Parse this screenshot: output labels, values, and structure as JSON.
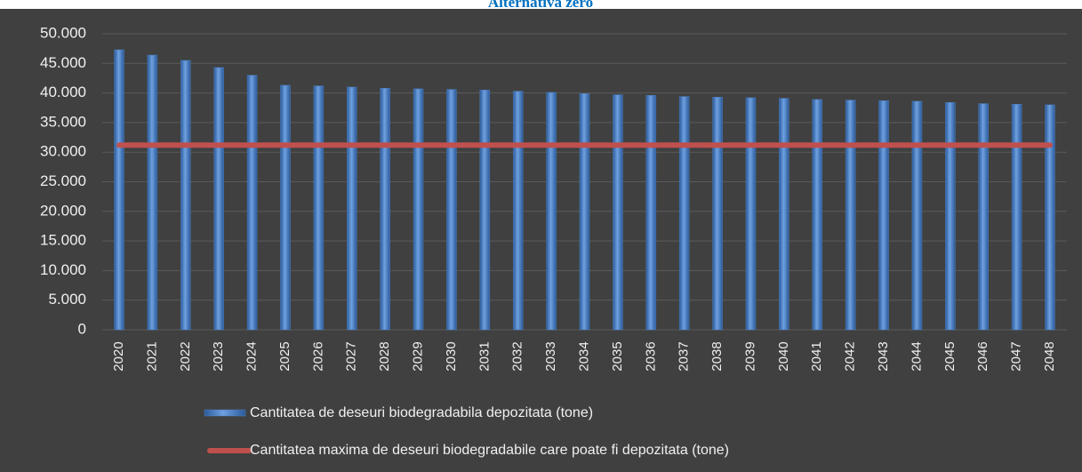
{
  "chart_data": {
    "type": "bar",
    "title": "Alternativa zero",
    "categories": [
      "2020",
      "2021",
      "2022",
      "2023",
      "2024",
      "2025",
      "2026",
      "2027",
      "2028",
      "2029",
      "2030",
      "2031",
      "2032",
      "2033",
      "2034",
      "2035",
      "2036",
      "2037",
      "2038",
      "2039",
      "2040",
      "2041",
      "2042",
      "2043",
      "2044",
      "2045",
      "2046",
      "2047",
      "2048"
    ],
    "series": [
      {
        "name": "Cantitatea de deseuri biodegradabila depozitata (tone)",
        "color": "#4a7ebb",
        "type": "bar",
        "values": [
          47300,
          46400,
          45500,
          44300,
          43000,
          41300,
          41200,
          41000,
          40800,
          40700,
          40600,
          40500,
          40300,
          40100,
          39900,
          39700,
          39600,
          39400,
          39300,
          39200,
          39100,
          38900,
          38800,
          38700,
          38600,
          38400,
          38200,
          38100,
          38000
        ]
      },
      {
        "name": "Cantitatea maxima de deseuri biodegradabile care poate fi depozitata (tone)",
        "color": "#c0504d",
        "type": "line",
        "values": [
          31200,
          31200,
          31200,
          31200,
          31200,
          31200,
          31200,
          31200,
          31200,
          31200,
          31200,
          31200,
          31200,
          31200,
          31200,
          31200,
          31200,
          31200,
          31200,
          31200,
          31200,
          31200,
          31200,
          31200,
          31200,
          31200,
          31200,
          31200,
          31200
        ]
      }
    ],
    "ylim": [
      0,
      50000
    ],
    "yticks": [
      0,
      {
        "value": 5000,
        "label": "5.000"
      },
      {
        "value": 10000,
        "label": "10.000"
      },
      {
        "value": 15000,
        "label": "15.000"
      },
      {
        "value": 20000,
        "label": "20.000"
      },
      {
        "value": 25000,
        "label": "25.000"
      },
      {
        "value": 30000,
        "label": "30.000"
      },
      {
        "value": 35000,
        "label": "35.000"
      },
      {
        "value": 40000,
        "label": "40.000"
      },
      {
        "value": 45000,
        "label": "45.000"
      },
      {
        "value": 50000,
        "label": "50.000"
      }
    ],
    "grid": true,
    "legend": "bottom"
  }
}
